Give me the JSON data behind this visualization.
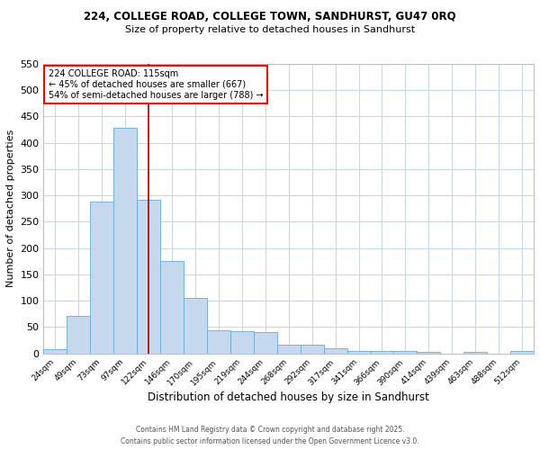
{
  "title_line1": "224, COLLEGE ROAD, COLLEGE TOWN, SANDHURST, GU47 0RQ",
  "title_line2": "Size of property relative to detached houses in Sandhurst",
  "xlabel": "Distribution of detached houses by size in Sandhurst",
  "ylabel": "Number of detached properties",
  "annotation_line1": "224 COLLEGE ROAD: 115sqm",
  "annotation_line2": "← 45% of detached houses are smaller (667)",
  "annotation_line3": "54% of semi-detached houses are larger (788) →",
  "bin_labels": [
    "24sqm",
    "49sqm",
    "73sqm",
    "97sqm",
    "122sqm",
    "146sqm",
    "170sqm",
    "195sqm",
    "219sqm",
    "244sqm",
    "268sqm",
    "292sqm",
    "317sqm",
    "341sqm",
    "366sqm",
    "390sqm",
    "414sqm",
    "439sqm",
    "463sqm",
    "488sqm",
    "512sqm"
  ],
  "bar_heights": [
    7,
    71,
    288,
    428,
    291,
    175,
    106,
    43,
    42,
    40,
    17,
    17,
    9,
    4,
    4,
    4,
    3,
    0,
    3,
    0,
    4
  ],
  "bar_color": "#c5d8ee",
  "bar_edge_color": "#6aaad4",
  "vline_x": 4.0,
  "vline_color": "#aa0000",
  "background_color": "#ffffff",
  "plot_bg_color": "#ffffff",
  "grid_color": "#c8d8e8",
  "ylim": [
    0,
    550
  ],
  "yticks": [
    0,
    50,
    100,
    150,
    200,
    250,
    300,
    350,
    400,
    450,
    500,
    550
  ],
  "footer_line1": "Contains HM Land Registry data © Crown copyright and database right 2025.",
  "footer_line2": "Contains public sector information licensed under the Open Government Licence v3.0."
}
